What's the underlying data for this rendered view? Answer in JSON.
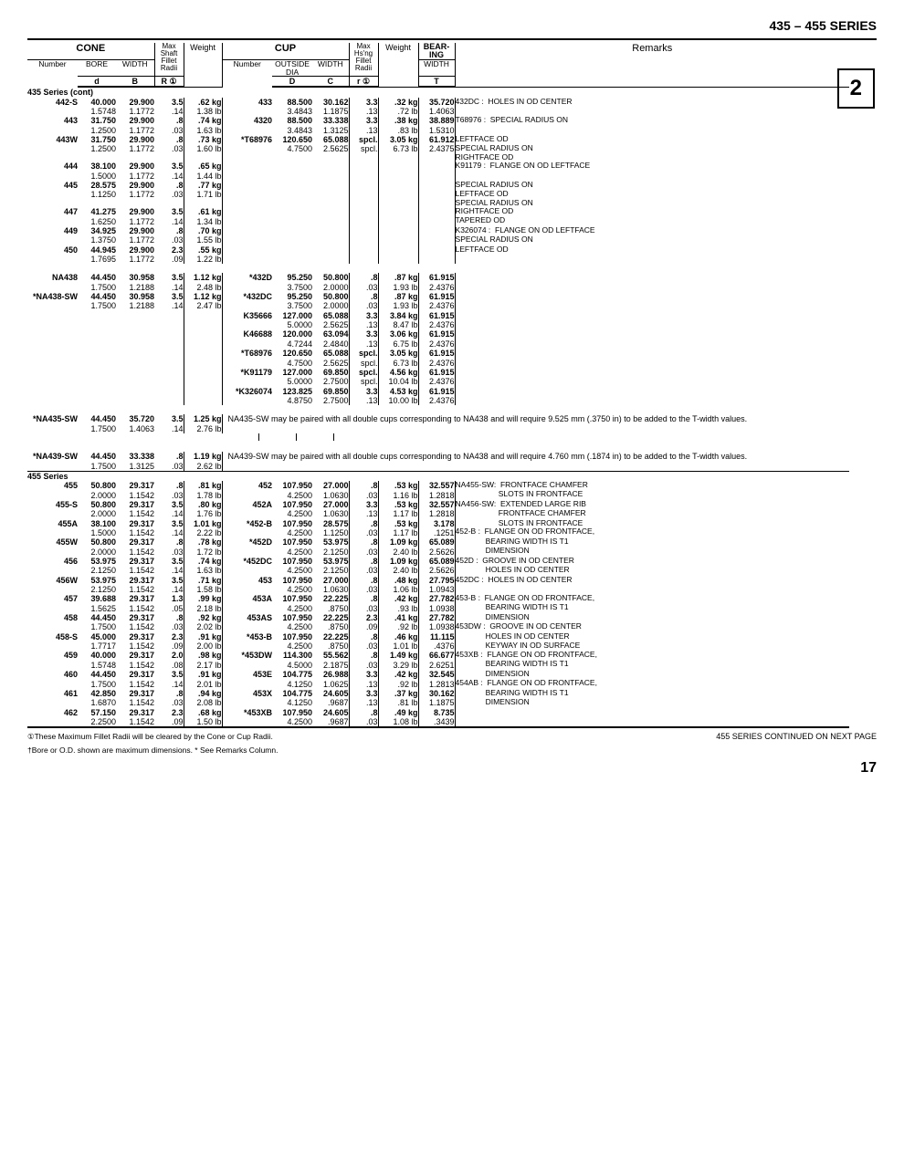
{
  "header": {
    "series": "435 – 455 SERIES",
    "pagebox": "2"
  },
  "tableHeader": {
    "cone": "CONE",
    "cup": "CUP",
    "bearing": "BEAR-\nING",
    "max1": "Max\nShaft\nFillet\nRadii",
    "max2": "Max\nHs'ng\nFillet\nRadii",
    "number": "Number",
    "bore": "BORE",
    "width": "WIDTH",
    "weight": "Weight",
    "outside": "OUTSIDE\nDIA",
    "remarks": "Remarks",
    "d": "d",
    "B": "B",
    "R": "R ①",
    "D": "D",
    "C": "C",
    "r": "r ①",
    "T": "T"
  },
  "footnotes": {
    "f1": "①These Maximum Fillet Radii will be cleared by the Cone or Cup Radii.",
    "f2": "†Bore or O.D. shown are maximum dimensions.   * See Remarks Column.",
    "cont": "455 SERIES CONTINUED ON NEXT PAGE",
    "pagenum": "17"
  },
  "sections": {
    "s435": "435 Series (cont)",
    "s455": "455 Series"
  },
  "notes": {
    "na435": "NA435-SW may be paired with all double cups corresponding to NA438 and will require 9.525 mm (.3750 in) to be added to the T-width values.",
    "na439": "NA439-SW may be paired with all double cups corresponding to NA438 and will require 4.760 mm (.1874 in) to be added to the T-width values."
  },
  "remarks": [
    "432DC :  HOLES IN OD CENTER",
    "T68976 :  SPECIAL RADIUS ON LEFTFACE OD",
    "SPECIAL RADIUS ON RIGHTFACE OD",
    "K91179 :  FLANGE ON OD LEFTFACE",
    "SPECIAL RADIUS ON LEFTFACE OD",
    "SPECIAL RADIUS ON RIGHTFACE OD",
    "TAPERED OD",
    "K326074 :  FLANGE ON OD LEFTFACE",
    "SPECIAL RADIUS ON LEFTFACE OD",
    "NA455-SW:  FRONTFACE CHAMFER",
    "SLOTS IN FRONTFACE",
    "NA456-SW:  EXTENDED LARGE RIB FRONTFACE CHAMFER",
    "SLOTS IN FRONTFACE",
    "452-B :  FLANGE ON OD FRONTFACE, BEARING WIDTH IS T1 DIMENSION",
    "452D :  GROOVE IN OD CENTER",
    "HOLES IN OD CENTER",
    "452DC :  HOLES IN OD CENTER",
    "453-B :  FLANGE ON OD FRONTFACE, BEARING WIDTH IS T1 DIMENSION",
    "453DW :  GROOVE IN OD CENTER",
    "HOLES IN OD CENTER",
    "KEYWAY IN OD SURFACE",
    "453XB :  FLANGE ON OD FRONTFACE, BEARING WIDTH IS T1 DIMENSION",
    "454AB :  FLANGE ON OD FRONTFACE, BEARING WIDTH IS T1 DIMENSION"
  ],
  "rows435": [
    {
      "n": "442-S",
      "d": "40.000",
      "d2": "1.5748",
      "B": "29.900",
      "B2": "1.1772",
      "R": "3.5",
      "R2": ".14",
      "w": ".62 kg",
      "w2": "1.38 lb",
      "cn": "433",
      "D": "88.500",
      "D2": "3.4843",
      "C": "30.162",
      "C2": "1.1875",
      "r": "3.3",
      "r2": ".13",
      "cw": ".32 kg",
      "cw2": ".72 lb",
      "T": "35.720",
      "T2": "1.4063",
      "rem": "432DC :",
      "remt": "HOLES IN OD CENTER"
    },
    {
      "n": "443",
      "d": "31.750",
      "d2": "1.2500",
      "B": "29.900",
      "B2": "1.1772",
      "R": ".8",
      "R2": ".03",
      "w": ".74 kg",
      "w2": "1.63 lb",
      "cn": "4320",
      "D": "88.500",
      "D2": "3.4843",
      "C": "33.338",
      "C2": "1.3125",
      "r": "3.3",
      "r2": ".13",
      "cw": ".38 kg",
      "cw2": ".83 lb",
      "T": "38.889",
      "T2": "1.5310",
      "rem": "T68976 :",
      "remt": "SPECIAL RADIUS ON"
    },
    {
      "n": "443W",
      "d": "31.750",
      "d2": "1.2500",
      "B": "29.900",
      "B2": "1.1772",
      "R": ".8",
      "R2": ".03",
      "w": ".73 kg",
      "w2": "1.60 lb",
      "cn": "*T68976",
      "D": "120.650",
      "D2": "4.7500",
      "C": "65.088",
      "C2": "2.5625",
      "r": "spcl.",
      "r2": "spcl.",
      "cw": "3.05 kg",
      "cw2": "6.73 lb",
      "T": "61.912",
      "T2": "2.4375",
      "rem": "",
      "remt": "LEFTFACE OD\nSPECIAL RADIUS ON\nRIGHTFACE OD"
    },
    {
      "n": "444",
      "d": "38.100",
      "d2": "1.5000",
      "B": "29.900",
      "B2": "1.1772",
      "R": "3.5",
      "R2": ".14",
      "w": ".65 kg",
      "w2": "1.44 lb",
      "rem": "K91179 :",
      "remt": "FLANGE ON OD LEFTFACE"
    },
    {
      "n": "445",
      "d": "28.575",
      "d2": "1.1250",
      "B": "29.900",
      "B2": "1.1772",
      "R": ".8",
      "R2": ".03",
      "w": ".77 kg",
      "w2": "1.71 lb",
      "rem": "",
      "remt": "SPECIAL RADIUS ON\nLEFTFACE OD\nSPECIAL RADIUS ON"
    },
    {
      "n": "447",
      "d": "41.275",
      "d2": "1.6250",
      "B": "29.900",
      "B2": "1.1772",
      "R": "3.5",
      "R2": ".14",
      "w": ".61 kg",
      "w2": "1.34 lb",
      "rem": "",
      "remt": "RIGHTFACE OD\nTAPERED OD"
    },
    {
      "n": "449",
      "d": "34.925",
      "d2": "1.3750",
      "B": "29.900",
      "B2": "1.1772",
      "R": ".8",
      "R2": ".03",
      "w": ".70 kg",
      "w2": "1.55 lb",
      "rem": "K326074 :",
      "remt": "FLANGE ON OD LEFTFACE\nSPECIAL RADIUS ON"
    },
    {
      "n": "450",
      "d": "44.945",
      "d2": "1.7695",
      "B": "29.900",
      "B2": "1.1772",
      "R": "2.3",
      "R2": ".09",
      "w": ".55 kg",
      "w2": "1.22 lb",
      "rem": "",
      "remt": "LEFTFACE OD"
    }
  ],
  "rowsNA438": [
    {
      "n": "NA438",
      "d": "44.450",
      "d2": "1.7500",
      "B": "30.958",
      "B2": "1.2188",
      "R": "3.5",
      "R2": ".14",
      "w": "1.12 kg",
      "w2": "2.48 lb",
      "cn": "*432D",
      "D": "95.250",
      "D2": "3.7500",
      "C": "50.800",
      "C2": "2.0000",
      "r": ".8",
      "r2": ".03",
      "cw": ".87 kg",
      "cw2": "1.93 lb",
      "T": "61.915",
      "T2": "2.4376"
    },
    {
      "n": "*NA438-SW",
      "d": "44.450",
      "d2": "1.7500",
      "B": "30.958",
      "B2": "1.2188",
      "R": "3.5",
      "R2": ".14",
      "w": "1.12 kg",
      "w2": "2.47 lb",
      "cn": "*432DC",
      "D": "95.250",
      "D2": "3.7500",
      "C": "50.800",
      "C2": "2.0000",
      "r": ".8",
      "r2": ".03",
      "cw": ".87 kg",
      "cw2": "1.93 lb",
      "T": "61.915",
      "T2": "2.4376"
    },
    {
      "cn": "K35666",
      "D": "127.000",
      "D2": "5.0000",
      "C": "65.088",
      "C2": "2.5625",
      "r": "3.3",
      "r2": ".13",
      "cw": "3.84 kg",
      "cw2": "8.47 lb",
      "T": "61.915",
      "T2": "2.4376"
    },
    {
      "cn": "K46688",
      "D": "120.000",
      "D2": "4.7244",
      "C": "63.094",
      "C2": "2.4840",
      "r": "3.3",
      "r2": ".13",
      "cw": "3.06 kg",
      "cw2": "6.75 lb",
      "T": "61.915",
      "T2": "2.4376"
    },
    {
      "cn": "*T68976",
      "D": "120.650",
      "D2": "4.7500",
      "C": "65.088",
      "C2": "2.5625",
      "r": "spcl.",
      "r2": "spcl.",
      "cw": "3.05 kg",
      "cw2": "6.73 lb",
      "T": "61.915",
      "T2": "2.4376"
    },
    {
      "cn": "*K91179",
      "D": "127.000",
      "D2": "5.0000",
      "C": "69.850",
      "C2": "2.7500",
      "r": "spcl.",
      "r2": "spcl.",
      "cw": "4.56 kg",
      "cw2": "10.04 lb",
      "T": "61.915",
      "T2": "2.4376"
    },
    {
      "cn": "*K326074",
      "D": "123.825",
      "D2": "4.8750",
      "C": "69.850",
      "C2": "2.7500",
      "r": "3.3",
      "r2": ".13",
      "cw": "4.53 kg",
      "cw2": "10.00 lb",
      "T": "61.915",
      "T2": "2.4376"
    }
  ],
  "na435row": {
    "n": "*NA435-SW",
    "d": "44.450",
    "d2": "1.7500",
    "B": "35.720",
    "B2": "1.4063",
    "R": "3.5",
    "R2": ".14",
    "w": "1.25 kg",
    "w2": "2.76 lb"
  },
  "na439row": {
    "n": "*NA439-SW",
    "d": "44.450",
    "d2": "1.7500",
    "B": "33.338",
    "B2": "1.3125",
    "R": ".8",
    "R2": ".03",
    "w": "1.19 kg",
    "w2": "2.62 lb"
  },
  "rows455": [
    {
      "n": "455",
      "d": "50.800",
      "d2": "2.0000",
      "B": "29.317",
      "B2": "1.1542",
      "R": ".8",
      "R2": ".03",
      "w": ".81 kg",
      "w2": "1.78 lb",
      "cn": "452",
      "D": "107.950",
      "D2": "4.2500",
      "C": "27.000",
      "C2": "1.0630",
      "r": ".8",
      "r2": ".03",
      "cw": ".53 kg",
      "cw2": "1.16 lb",
      "T": "32.557",
      "T2": "1.2818",
      "rem": "",
      "remt": "NA455-SW:  FRONTFACE CHAMFER\n                    SLOTS IN FRONTFACE"
    },
    {
      "n": "455-S",
      "d": "50.800",
      "d2": "2.0000",
      "B": "29.317",
      "B2": "1.1542",
      "R": "3.5",
      "R2": ".14",
      "w": ".80 kg",
      "w2": "1.76 lb",
      "cn": "452A",
      "D": "107.950",
      "D2": "4.2500",
      "C": "27.000",
      "C2": "1.0630",
      "r": "3.3",
      "r2": ".13",
      "cw": ".53 kg",
      "cw2": "1.17 lb",
      "T": "32.557",
      "T2": "1.2818",
      "rem": "",
      "remt": "NA456-SW:  EXTENDED LARGE RIB\n                    FRONTFACE CHAMFER"
    },
    {
      "n": "455A",
      "d": "38.100",
      "d2": "1.5000",
      "B": "29.317",
      "B2": "1.1542",
      "R": "3.5",
      "R2": ".14",
      "w": "1.01 kg",
      "w2": "2.22 lb",
      "cn": "*452-B",
      "D": "107.950",
      "D2": "4.2500",
      "C": "28.575",
      "C2": "1.1250",
      "r": ".8",
      "r2": ".03",
      "cw": ".53 kg",
      "cw2": "1.17 lb",
      "T": "3.178",
      "T2": ".1251",
      "rem": "",
      "remt": "                    SLOTS IN FRONTFACE\n452-B :  FLANGE ON OD FRONTFACE,"
    },
    {
      "n": "455W",
      "d": "50.800",
      "d2": "2.0000",
      "B": "29.317",
      "B2": "1.1542",
      "R": ".8",
      "R2": ".03",
      "w": ".78 kg",
      "w2": "1.72 lb",
      "cn": "*452D",
      "D": "107.950",
      "D2": "4.2500",
      "C": "53.975",
      "C2": "2.1250",
      "r": ".8",
      "r2": ".03",
      "cw": "1.09 kg",
      "cw2": "2.40 lb",
      "T": "65.089",
      "T2": "2.5626",
      "rem": "",
      "remt": "              BEARING WIDTH IS T1\n              DIMENSION"
    },
    {
      "n": "456",
      "d": "53.975",
      "d2": "2.1250",
      "B": "29.317",
      "B2": "1.1542",
      "R": "3.5",
      "R2": ".14",
      "w": ".74 kg",
      "w2": "1.63 lb",
      "cn": "*452DC",
      "D": "107.950",
      "D2": "4.2500",
      "C": "53.975",
      "C2": "2.1250",
      "r": ".8",
      "r2": ".03",
      "cw": "1.09 kg",
      "cw2": "2.40 lb",
      "T": "65.089",
      "T2": "2.5626",
      "rem": "",
      "remt": "452D :  GROOVE IN OD CENTER\n              HOLES IN OD CENTER"
    },
    {
      "n": "456W",
      "d": "53.975",
      "d2": "2.1250",
      "B": "29.317",
      "B2": "1.1542",
      "R": "3.5",
      "R2": ".14",
      "w": ".71 kg",
      "w2": "1.58 lb",
      "cn": "453",
      "D": "107.950",
      "D2": "4.2500",
      "C": "27.000",
      "C2": "1.0630",
      "r": ".8",
      "r2": ".03",
      "cw": ".48 kg",
      "cw2": "1.06 lb",
      "T": "27.795",
      "T2": "1.0943",
      "rem": "",
      "remt": "452DC :  HOLES IN OD CENTER"
    },
    {
      "n": "457",
      "d": "39.688",
      "d2": "1.5625",
      "B": "29.317",
      "B2": "1.1542",
      "R": "1.3",
      "R2": ".05",
      "w": ".99 kg",
      "w2": "2.18 lb",
      "cn": "453A",
      "D": "107.950",
      "D2": "4.2500",
      "C": "22.225",
      "C2": ".8750",
      "r": ".8",
      "r2": ".03",
      "cw": ".42 kg",
      "cw2": ".93 lb",
      "T": "27.782",
      "T2": "1.0938",
      "rem": "",
      "remt": "453-B :  FLANGE ON OD FRONTFACE,\n              BEARING WIDTH IS T1"
    },
    {
      "n": "458",
      "d": "44.450",
      "d2": "1.7500",
      "B": "29.317",
      "B2": "1.1542",
      "R": ".8",
      "R2": ".03",
      "w": ".92 kg",
      "w2": "2.02 lb",
      "cn": "453AS",
      "D": "107.950",
      "D2": "4.2500",
      "C": "22.225",
      "C2": ".8750",
      "r": "2.3",
      "r2": ".09",
      "cw": ".41 kg",
      "cw2": ".92 lb",
      "T": "27.782",
      "T2": "1.0938",
      "rem": "",
      "remt": "              DIMENSION\n453DW :  GROOVE IN OD CENTER"
    },
    {
      "n": "458-S",
      "d": "45.000",
      "d2": "1.7717",
      "B": "29.317",
      "B2": "1.1542",
      "R": "2.3",
      "R2": ".09",
      "w": ".91 kg",
      "w2": "2.00 lb",
      "cn": "*453-B",
      "D": "107.950",
      "D2": "4.2500",
      "C": "22.225",
      "C2": ".8750",
      "r": ".8",
      "r2": ".03",
      "cw": ".46 kg",
      "cw2": "1.01 lb",
      "T": "11.115",
      "T2": ".4376",
      "rem": "",
      "remt": "              HOLES IN OD CENTER\n              KEYWAY IN OD SURFACE"
    },
    {
      "n": "459",
      "d": "40.000",
      "d2": "1.5748",
      "B": "29.317",
      "B2": "1.1542",
      "R": "2.0",
      "R2": ".08",
      "w": ".98 kg",
      "w2": "2.17 lb",
      "cn": "*453DW",
      "D": "114.300",
      "D2": "4.5000",
      "C": "55.562",
      "C2": "2.1875",
      "r": ".8",
      "r2": ".03",
      "cw": "1.49 kg",
      "cw2": "3.29 lb",
      "T": "66.677",
      "T2": "2.6251",
      "rem": "",
      "remt": "453XB :  FLANGE ON OD FRONTFACE,\n              BEARING WIDTH IS T1"
    },
    {
      "n": "460",
      "d": "44.450",
      "d2": "1.7500",
      "B": "29.317",
      "B2": "1.1542",
      "R": "3.5",
      "R2": ".14",
      "w": ".91 kg",
      "w2": "2.01 lb",
      "cn": "453E",
      "D": "104.775",
      "D2": "4.1250",
      "C": "26.988",
      "C2": "1.0625",
      "r": "3.3",
      "r2": ".13",
      "cw": ".42 kg",
      "cw2": ".92 lb",
      "T": "32.545",
      "T2": "1.2813",
      "rem": "",
      "remt": "              DIMENSION\n454AB :  FLANGE ON OD FRONTFACE,"
    },
    {
      "n": "461",
      "d": "42.850",
      "d2": "1.6870",
      "B": "29.317",
      "B2": "1.1542",
      "R": ".8",
      "R2": ".03",
      "w": ".94 kg",
      "w2": "2.08 lb",
      "cn": "453X",
      "D": "104.775",
      "D2": "4.1250",
      "C": "24.605",
      "C2": ".9687",
      "r": "3.3",
      "r2": ".13",
      "cw": ".37 kg",
      "cw2": ".81 lb",
      "T": "30.162",
      "T2": "1.1875",
      "rem": "",
      "remt": "              BEARING WIDTH IS T1\n              DIMENSION"
    },
    {
      "n": "462",
      "d": "57.150",
      "d2": "2.2500",
      "B": "29.317",
      "B2": "1.1542",
      "R": "2.3",
      "R2": ".09",
      "w": ".68 kg",
      "w2": "1.50 lb",
      "cn": "*453XB",
      "D": "107.950",
      "D2": "4.2500",
      "C": "24.605",
      "C2": ".9687",
      "r": ".8",
      "r2": ".03",
      "cw": ".49 kg",
      "cw2": "1.08 lb",
      "T": "8.735",
      "T2": ".3439",
      "rem": "",
      "remt": ""
    }
  ]
}
